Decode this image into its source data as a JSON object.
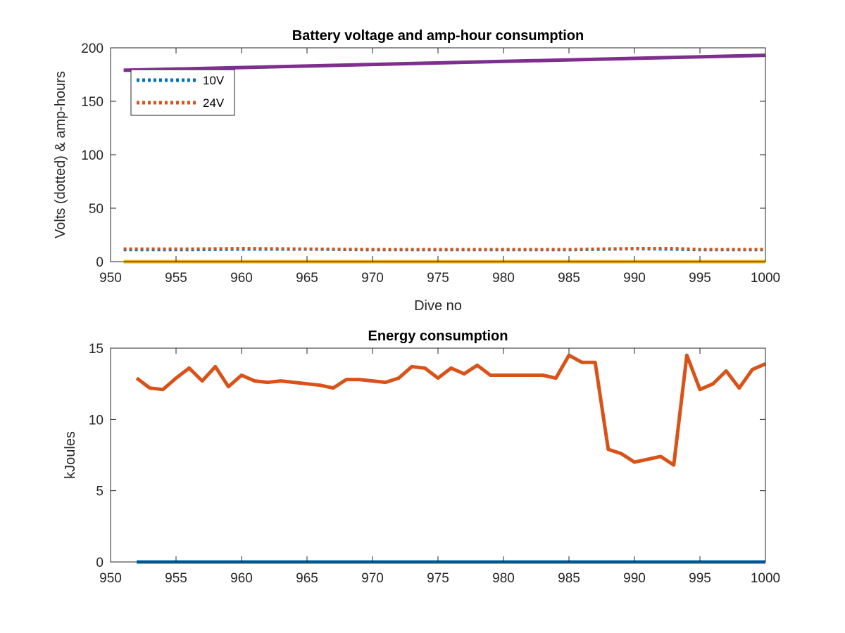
{
  "chart_data": [
    {
      "type": "line",
      "title": "Battery voltage and amp-hour consumption",
      "xlabel": "Dive no",
      "ylabel": "Volts (dotted) & amp-hours",
      "xlim": [
        950,
        1000
      ],
      "ylim": [
        0,
        200
      ],
      "xticks": [
        950,
        955,
        960,
        965,
        970,
        975,
        980,
        985,
        990,
        995,
        1000
      ],
      "yticks": [
        0,
        50,
        100,
        150,
        200
      ],
      "grid": false,
      "legend_position": "top-left",
      "series": [
        {
          "name": "10V",
          "style": "dotted",
          "color": "#0072BD",
          "in_legend": true,
          "x": [
            951,
            956,
            960,
            965,
            970,
            975,
            980,
            985,
            988,
            990,
            993,
            995,
            1000
          ],
          "y": [
            11,
            11,
            11.5,
            11.5,
            11,
            11,
            11,
            11,
            11.5,
            12,
            11.5,
            11,
            11
          ]
        },
        {
          "name": "24V",
          "style": "dotted",
          "color": "#D95319",
          "in_legend": true,
          "x": [
            951,
            956,
            960,
            965,
            970,
            975,
            980,
            985,
            990,
            993,
            995,
            1000
          ],
          "y": [
            12,
            12,
            12.5,
            12,
            11.5,
            11.5,
            11.5,
            11.5,
            12.5,
            12.5,
            11.5,
            11.5
          ]
        },
        {
          "name": "",
          "style": "solid",
          "color": "#EDB120",
          "in_legend": false,
          "x": [
            951,
            1000
          ],
          "y": [
            0,
            0
          ]
        },
        {
          "name": "",
          "style": "solid",
          "color": "#7E2F8E",
          "in_legend": false,
          "x": [
            951,
            1000
          ],
          "y": [
            179,
            193
          ]
        }
      ]
    },
    {
      "type": "line",
      "title": "Energy consumption",
      "xlabel": "",
      "ylabel": "kJoules",
      "xlim": [
        950,
        1000
      ],
      "ylim": [
        0,
        15
      ],
      "xticks": [
        950,
        955,
        960,
        965,
        970,
        975,
        980,
        985,
        990,
        995,
        1000
      ],
      "yticks": [
        0,
        5,
        10,
        15
      ],
      "grid": false,
      "series": [
        {
          "name": "",
          "style": "solid",
          "color": "#0072BD",
          "x": [
            952,
            1000
          ],
          "y": [
            0,
            0
          ]
        },
        {
          "name": "",
          "style": "solid",
          "color": "#D95319",
          "x": [
            952,
            953,
            954,
            955,
            956,
            957,
            958,
            959,
            960,
            961,
            962,
            963,
            964,
            965,
            966,
            967,
            968,
            969,
            970,
            971,
            972,
            973,
            974,
            975,
            976,
            977,
            978,
            979,
            980,
            981,
            982,
            983,
            984,
            985,
            986,
            987,
            988,
            989,
            990,
            991,
            992,
            993,
            994,
            995,
            996,
            997,
            998,
            999,
            1000
          ],
          "y": [
            12.9,
            12.2,
            12.1,
            12.9,
            13.6,
            12.7,
            13.7,
            12.3,
            13.1,
            12.7,
            12.6,
            12.7,
            12.6,
            12.5,
            12.4,
            12.2,
            12.8,
            12.8,
            12.7,
            12.6,
            12.9,
            13.7,
            13.6,
            12.9,
            13.6,
            13.2,
            13.8,
            13.1,
            13.1,
            13.1,
            13.1,
            13.1,
            12.9,
            14.5,
            14.0,
            14.0,
            7.9,
            7.6,
            7.0,
            7.2,
            7.4,
            6.8,
            14.5,
            12.1,
            12.5,
            13.4,
            12.2,
            13.5,
            13.9
          ]
        }
      ]
    }
  ]
}
